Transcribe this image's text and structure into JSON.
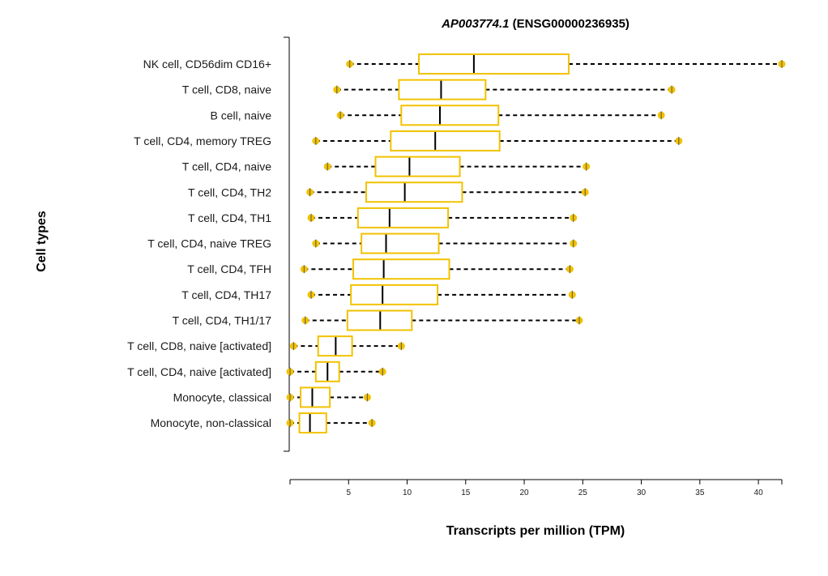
{
  "title": {
    "gene_italic": "AP003774.1",
    "gene_id": " (ENSG00000236935)"
  },
  "colors": {
    "box": "#f2c200",
    "marker": "#f2c200"
  },
  "chart_data": {
    "type": "box",
    "title": "AP003774.1 (ENSG00000236935)",
    "xlabel": "Transcripts per million (TPM)",
    "ylabel": "Cell types",
    "xlim": [
      0,
      42
    ],
    "xticks": [
      5,
      10,
      15,
      20,
      25,
      30,
      35,
      40
    ],
    "grid": false,
    "series": [
      {
        "category": "NK cell, CD56dim CD16+",
        "min": 5.1,
        "q1": 11.0,
        "median": 15.7,
        "q3": 23.8,
        "max": 42.0
      },
      {
        "category": "T cell, CD8, naive",
        "min": 4.0,
        "q1": 9.3,
        "median": 12.9,
        "q3": 16.7,
        "max": 32.6
      },
      {
        "category": "B cell, naive",
        "min": 4.3,
        "q1": 9.5,
        "median": 12.8,
        "q3": 17.8,
        "max": 31.7
      },
      {
        "category": "T cell, CD4, memory TREG",
        "min": 2.2,
        "q1": 8.6,
        "median": 12.4,
        "q3": 17.9,
        "max": 33.2
      },
      {
        "category": "T cell, CD4, naive",
        "min": 3.2,
        "q1": 7.3,
        "median": 10.2,
        "q3": 14.5,
        "max": 25.3
      },
      {
        "category": "T cell, CD4, TH2",
        "min": 1.7,
        "q1": 6.5,
        "median": 9.8,
        "q3": 14.7,
        "max": 25.2
      },
      {
        "category": "T cell, CD4, TH1",
        "min": 1.8,
        "q1": 5.8,
        "median": 8.5,
        "q3": 13.5,
        "max": 24.2
      },
      {
        "category": "T cell, CD4, naive TREG",
        "min": 2.2,
        "q1": 6.1,
        "median": 8.2,
        "q3": 12.7,
        "max": 24.2
      },
      {
        "category": "T cell, CD4, TFH",
        "min": 1.2,
        "q1": 5.4,
        "median": 8.0,
        "q3": 13.6,
        "max": 23.9
      },
      {
        "category": "T cell, CD4, TH17",
        "min": 1.8,
        "q1": 5.2,
        "median": 7.9,
        "q3": 12.6,
        "max": 24.1
      },
      {
        "category": "T cell, CD4, TH1/17",
        "min": 1.3,
        "q1": 4.9,
        "median": 7.7,
        "q3": 10.4,
        "max": 24.7
      },
      {
        "category": "T cell, CD8, naive [activated]",
        "min": 0.3,
        "q1": 2.4,
        "median": 3.9,
        "q3": 5.3,
        "max": 9.5
      },
      {
        "category": "T cell, CD4, naive [activated]",
        "min": 0.0,
        "q1": 2.2,
        "median": 3.2,
        "q3": 4.2,
        "max": 7.9
      },
      {
        "category": "Monocyte, classical",
        "min": 0.0,
        "q1": 0.9,
        "median": 1.9,
        "q3": 3.4,
        "max": 6.6
      },
      {
        "category": "Monocyte, non-classical",
        "min": 0.0,
        "q1": 0.8,
        "median": 1.7,
        "q3": 3.1,
        "max": 7.0
      }
    ]
  }
}
